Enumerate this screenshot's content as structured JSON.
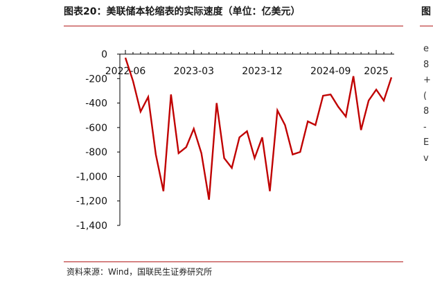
{
  "title": "图表20：美联储本轮缩表的实际速度（单位：亿美元）",
  "source": "资料来源：Wind，国联民生证券研究所",
  "edge_title_fragment": "图",
  "edge_glyphs": [
    "e",
    "8",
    "+",
    "(",
    "8",
    "-",
    "E",
    "v"
  ],
  "colors": {
    "line": "#c00000",
    "accent_rule": "#b31b1b",
    "text": "#1a1a1a"
  },
  "chart_data": {
    "type": "line",
    "title": "",
    "xlabel": "",
    "ylabel": "",
    "x_tick_labels": [
      "2022-06",
      "2023-03",
      "2023-12",
      "2024-09",
      "2025"
    ],
    "x_tick_months": [
      "2022-06",
      "2023-03",
      "2023-12",
      "2024-09",
      "2025-03"
    ],
    "y_ticks": [
      0,
      -200,
      -400,
      -600,
      -800,
      -1000,
      -1200,
      -1400
    ],
    "y_tick_labels": [
      "0",
      "-200",
      "-400",
      "-600",
      "-800",
      "-1,000",
      "-1,200",
      "-1,400"
    ],
    "ylim": [
      -1400,
      0
    ],
    "grid": false,
    "series": [
      {
        "name": "",
        "x": [
          "2022-06",
          "2022-07",
          "2022-08",
          "2022-09",
          "2022-10",
          "2022-11",
          "2022-12",
          "2023-01",
          "2023-02",
          "2023-03",
          "2023-04",
          "2023-05",
          "2023-06",
          "2023-07",
          "2023-08",
          "2023-09",
          "2023-10",
          "2023-11",
          "2023-12",
          "2024-01",
          "2024-02",
          "2024-03",
          "2024-04",
          "2024-05",
          "2024-06",
          "2024-07",
          "2024-08",
          "2024-09",
          "2024-10",
          "2024-11",
          "2024-12",
          "2025-01",
          "2025-02",
          "2025-03",
          "2025-04",
          "2025-05"
        ],
        "values": [
          -30,
          -220,
          -470,
          -350,
          -820,
          -1120,
          -330,
          -810,
          -760,
          -610,
          -810,
          -1190,
          -400,
          -850,
          -930,
          -680,
          -630,
          -850,
          -680,
          -1120,
          -460,
          -580,
          -820,
          -800,
          -550,
          -580,
          -340,
          -330,
          -430,
          -510,
          -180,
          -620,
          -380,
          -290,
          -380,
          -190
        ]
      }
    ]
  }
}
